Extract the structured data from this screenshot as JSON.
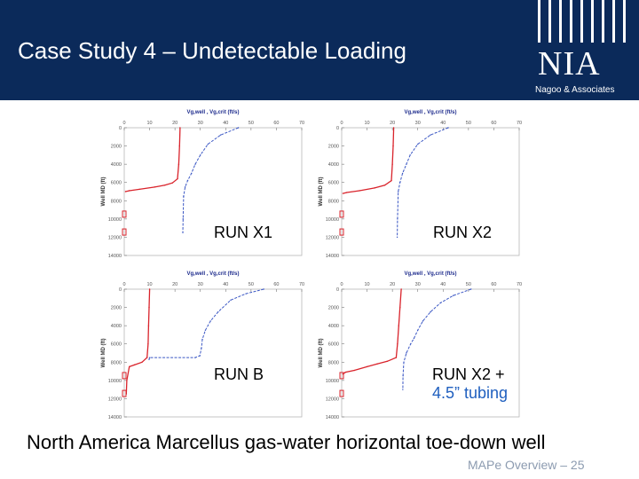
{
  "slide": {
    "title": "Case Study 4 – Undetectable Loading",
    "caption": "North America Marcellus gas-water horizontal toe-down well",
    "footer": "MAPe Overview – 25",
    "logo_text": "NIA",
    "logo_sub": "Nagoo & Associates",
    "header_color": "#0b2a5a"
  },
  "chart_data": [
    {
      "id": "x1",
      "type": "line",
      "label": "RUN X1",
      "title": "Vg,well , Vg,crit (ft/s)",
      "ylabel": "Well MD (ft)",
      "x_ticks": [
        "0",
        "10",
        "20",
        "30",
        "40",
        "50",
        "60",
        "70"
      ],
      "y_ticks": [
        "0",
        "2000",
        "4000",
        "6000",
        "8000",
        "10000",
        "12000",
        "14000"
      ],
      "xlim": [
        0,
        70
      ],
      "ylim": [
        0,
        14000
      ],
      "series": [
        {
          "color": "#d9232b",
          "points": [
            [
              22,
              0
            ],
            [
              21.8,
              2000
            ],
            [
              21.5,
              4000
            ],
            [
              21,
              5600
            ],
            [
              19,
              6050
            ],
            [
              16,
              6300
            ],
            [
              12,
              6500
            ],
            [
              6,
              6750
            ],
            [
              2,
              6900
            ],
            [
              0.5,
              7000
            ]
          ]
        },
        {
          "color": "#3b57c4",
          "dash": true,
          "points": [
            [
              45,
              0
            ],
            [
              38,
              800
            ],
            [
              33,
              1800
            ],
            [
              30,
              3000
            ],
            [
              28,
              4000
            ],
            [
              26.5,
              5000
            ],
            [
              25,
              5800
            ],
            [
              24,
              6500
            ],
            [
              23.4,
              7500
            ],
            [
              23.2,
              10000
            ],
            [
              23.1,
              11500
            ]
          ]
        }
      ]
    },
    {
      "id": "x2",
      "type": "line",
      "label": "RUN X2",
      "title": "Vg,well , Vg,crit (ft/s)",
      "ylabel": "Well MD (ft)",
      "x_ticks": [
        "0",
        "10",
        "20",
        "30",
        "40",
        "50",
        "60",
        "70"
      ],
      "y_ticks": [
        "0",
        "2000",
        "4000",
        "6000",
        "8000",
        "10000",
        "12000",
        "14000"
      ],
      "xlim": [
        0,
        70
      ],
      "ylim": [
        0,
        14000
      ],
      "series": [
        {
          "color": "#d9232b",
          "points": [
            [
              20.5,
              0
            ],
            [
              20.3,
              2000
            ],
            [
              20,
              4000
            ],
            [
              19.6,
              5800
            ],
            [
              17,
              6300
            ],
            [
              13,
              6600
            ],
            [
              7,
              6900
            ],
            [
              2,
              7100
            ],
            [
              0.5,
              7200
            ]
          ]
        },
        {
          "color": "#3b57c4",
          "dash": true,
          "points": [
            [
              42,
              0
            ],
            [
              35,
              800
            ],
            [
              30,
              1800
            ],
            [
              27,
              3000
            ],
            [
              25.5,
              4000
            ],
            [
              24,
              5000
            ],
            [
              23,
              6000
            ],
            [
              22.3,
              7000
            ],
            [
              22,
              10000
            ],
            [
              21.9,
              12000
            ]
          ]
        }
      ]
    },
    {
      "id": "b",
      "type": "line",
      "label": "RUN B",
      "title": "Vg,well , Vg,crit (ft/s)",
      "ylabel": "Well MD (ft)",
      "x_ticks": [
        "0",
        "10",
        "20",
        "30",
        "40",
        "50",
        "60",
        "70"
      ],
      "y_ticks": [
        "0",
        "2000",
        "4000",
        "6000",
        "8000",
        "10000",
        "12000",
        "14000"
      ],
      "xlim": [
        0,
        70
      ],
      "ylim": [
        0,
        14000
      ],
      "series": [
        {
          "color": "#d9232b",
          "points": [
            [
              10,
              0
            ],
            [
              9.8,
              2000
            ],
            [
              9.6,
              4000
            ],
            [
              9.4,
              6000
            ],
            [
              9,
              7500
            ],
            [
              7,
              8000
            ],
            [
              4,
              8300
            ],
            [
              2,
              8500
            ],
            [
              1,
              10000
            ],
            [
              0.8,
              11500
            ]
          ]
        },
        {
          "color": "#3b57c4",
          "dash": true,
          "points": [
            [
              55,
              0
            ],
            [
              48,
              500
            ],
            [
              42,
              1200
            ],
            [
              37,
              2500
            ],
            [
              34,
              3500
            ],
            [
              32,
              4500
            ],
            [
              30.8,
              5500
            ],
            [
              30.4,
              6500
            ],
            [
              29.8,
              7300
            ],
            [
              28,
              7500
            ],
            [
              10,
              7500
            ],
            [
              9.8,
              7700
            ]
          ]
        }
      ]
    },
    {
      "id": "x2b",
      "type": "line",
      "label": "RUN X2 +",
      "label2": "4.5” tubing",
      "title": "Vg,well , Vg,crit (ft/s)",
      "ylabel": "Well MD (ft)",
      "x_ticks": [
        "0",
        "10",
        "20",
        "30",
        "40",
        "50",
        "60",
        "70"
      ],
      "y_ticks": [
        "0",
        "2000",
        "4000",
        "6000",
        "8000",
        "10000",
        "12000",
        "14000"
      ],
      "xlim": [
        0,
        70
      ],
      "ylim": [
        0,
        14000
      ],
      "series": [
        {
          "color": "#d9232b",
          "points": [
            [
              23.5,
              0
            ],
            [
              23,
              2000
            ],
            [
              22.5,
              4000
            ],
            [
              22,
              6000
            ],
            [
              21.5,
              7500
            ],
            [
              18,
              7900
            ],
            [
              14,
              8200
            ],
            [
              10,
              8500
            ],
            [
              5,
              8900
            ],
            [
              1.5,
              9100
            ],
            [
              0.5,
              9300
            ]
          ]
        },
        {
          "color": "#3b57c4",
          "dash": true,
          "points": [
            [
              51,
              0
            ],
            [
              44,
              700
            ],
            [
              39,
              1500
            ],
            [
              35,
              2500
            ],
            [
              32,
              3500
            ],
            [
              30,
              4500
            ],
            [
              28.5,
              5400
            ],
            [
              27.2,
              6000
            ],
            [
              25.5,
              7000
            ],
            [
              24.5,
              8000
            ],
            [
              24.2,
              9500
            ],
            [
              24.1,
              11000
            ]
          ]
        }
      ]
    }
  ]
}
